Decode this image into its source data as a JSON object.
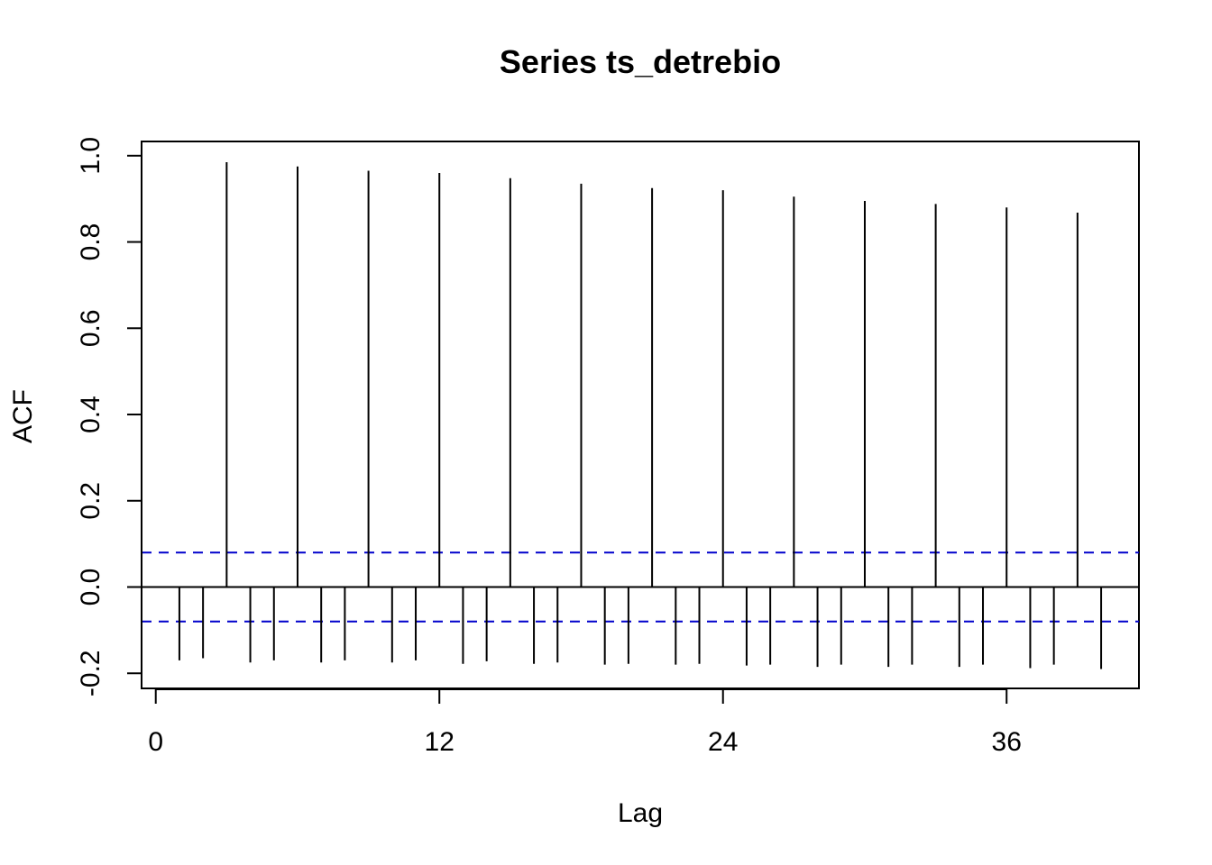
{
  "chart_data": {
    "type": "bar",
    "title": "Series  ts_detrebio",
    "xlabel": "Lag",
    "ylabel": "ACF",
    "xlim": [
      -0.6,
      41.6
    ],
    "ylim": [
      -0.235,
      1.033
    ],
    "xticks": [
      0,
      12,
      24,
      36
    ],
    "xtick_labels": [
      "0",
      "12",
      "24",
      "36"
    ],
    "yticks": [
      -0.2,
      0.0,
      0.2,
      0.4,
      0.6,
      0.8,
      1.0
    ],
    "ytick_labels": [
      "-0.2",
      "0.0",
      "0.2",
      "0.4",
      "0.6",
      "0.8",
      "1.0"
    ],
    "confidence_bounds": [
      0.08,
      -0.08
    ],
    "colors": {
      "spikes": "#000000",
      "bounds": "#0000cc",
      "zero_line": "#000000"
    },
    "lags": [
      1,
      2,
      3,
      4,
      5,
      6,
      7,
      8,
      9,
      10,
      11,
      12,
      13,
      14,
      15,
      16,
      17,
      18,
      19,
      20,
      21,
      22,
      23,
      24,
      25,
      26,
      27,
      28,
      29,
      30,
      31,
      32,
      33,
      34,
      35,
      36,
      37,
      38,
      39,
      40
    ],
    "values": [
      -0.17,
      -0.165,
      0.985,
      -0.175,
      -0.17,
      0.975,
      -0.175,
      -0.17,
      0.965,
      -0.175,
      -0.17,
      0.96,
      -0.178,
      -0.172,
      0.948,
      -0.178,
      -0.175,
      0.935,
      -0.18,
      -0.178,
      0.925,
      -0.18,
      -0.178,
      0.92,
      -0.182,
      -0.18,
      0.905,
      -0.185,
      -0.18,
      0.895,
      -0.185,
      -0.18,
      0.888,
      -0.185,
      -0.18,
      0.88,
      -0.188,
      -0.18,
      0.868,
      -0.19
    ]
  }
}
